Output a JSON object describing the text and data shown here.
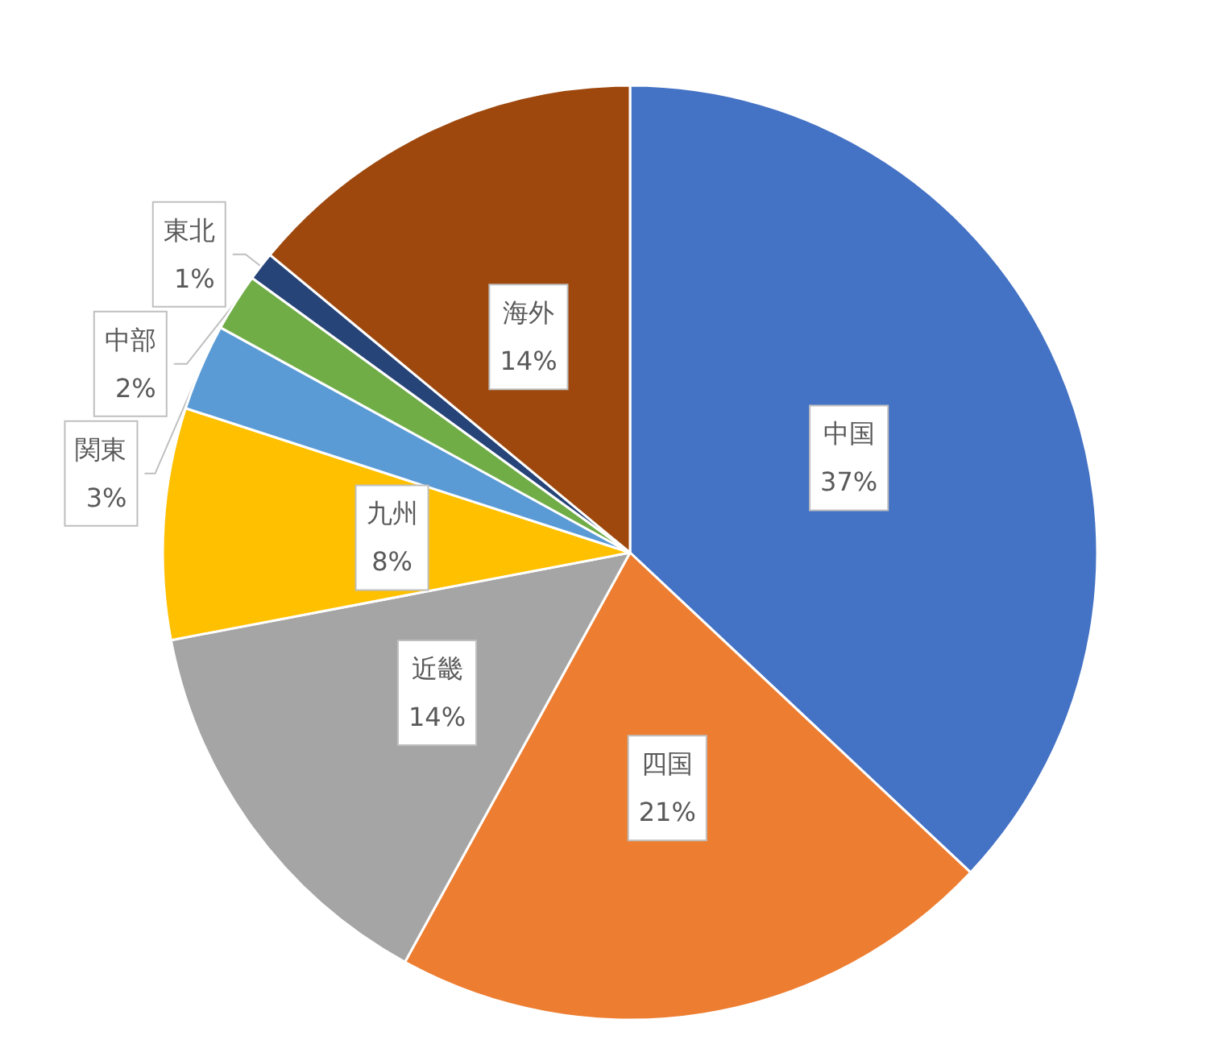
{
  "chart_data": {
    "type": "pie",
    "categories": [
      "中国",
      "四国",
      "近畿",
      "九州",
      "関東",
      "中部",
      "東北",
      "海外"
    ],
    "values": [
      37,
      21,
      14,
      8,
      3,
      2,
      1,
      14
    ],
    "colors": [
      "#4472c4",
      "#ed7d31",
      "#a5a5a5",
      "#ffc000",
      "#5b9bd5",
      "#70ad47",
      "#264478",
      "#9e480e"
    ],
    "value_labels": [
      "37%",
      "21%",
      "14%",
      "8%",
      "3%",
      "2%",
      "1%",
      "14%"
    ]
  }
}
